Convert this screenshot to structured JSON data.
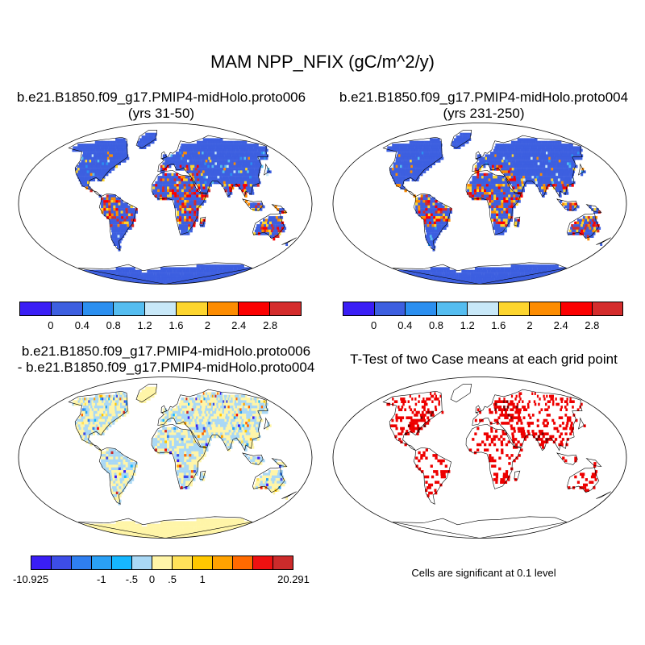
{
  "figure": {
    "title": "MAM NPP_NFIX (gC/m^2/y)"
  },
  "panels": [
    {
      "title_line1": "b.e21.B1850.f09_g17.PMIP4-midHolo.proto006",
      "title_line2": "(yrs 31-50)",
      "type": "case-map"
    },
    {
      "title_line1": "b.e21.B1850.f09_g17.PMIP4-midHolo.proto004",
      "title_line2": "(yrs 231-250)",
      "type": "case-map"
    },
    {
      "title_line1": "b.e21.B1850.f09_g17.PMIP4-midHolo.proto006",
      "title_line2": "- b.e21.B1850.f09_g17.PMIP4-midHolo.proto004",
      "type": "difference-map"
    },
    {
      "title_line1": "T-Test of two Case means at each grid point",
      "title_line2": "",
      "type": "significance-map",
      "note": "Cells are significant at 0.1 level"
    }
  ],
  "colorbars": {
    "case": {
      "colors": [
        "#3a1ef5",
        "#3d5fe0",
        "#2b8ff0",
        "#55bdf0",
        "#c8e8f8",
        "#fdd52e",
        "#fd8c00",
        "#fb0000",
        "#d42c2c"
      ],
      "tick_labels": [
        "0",
        "0.4",
        "0.8",
        "1.2",
        "1.6",
        "2",
        "2.4",
        "2.8"
      ]
    },
    "diff": {
      "colors": [
        "#3a1ef5",
        "#3d4de8",
        "#2f7ff0",
        "#2aa0f5",
        "#16b7ff",
        "#a9d8f5",
        "#fff5a8",
        "#ffe25a",
        "#ffc800",
        "#ffa200",
        "#ff6a00",
        "#ee1111",
        "#cc2b2b"
      ],
      "tick_labels": [
        "-10.925",
        "-1",
        "-.5",
        "0",
        ".5",
        "1",
        "20.291"
      ]
    }
  },
  "map_style": {
    "ocean": "#ffffff",
    "case_land_base": "#3d5fe0",
    "case_hot": "#e02020",
    "diff_land_base": "#fff5a8",
    "diff_light_blue": "#a9d8f5",
    "significant": "#ee0000",
    "coastline": "#000000"
  }
}
